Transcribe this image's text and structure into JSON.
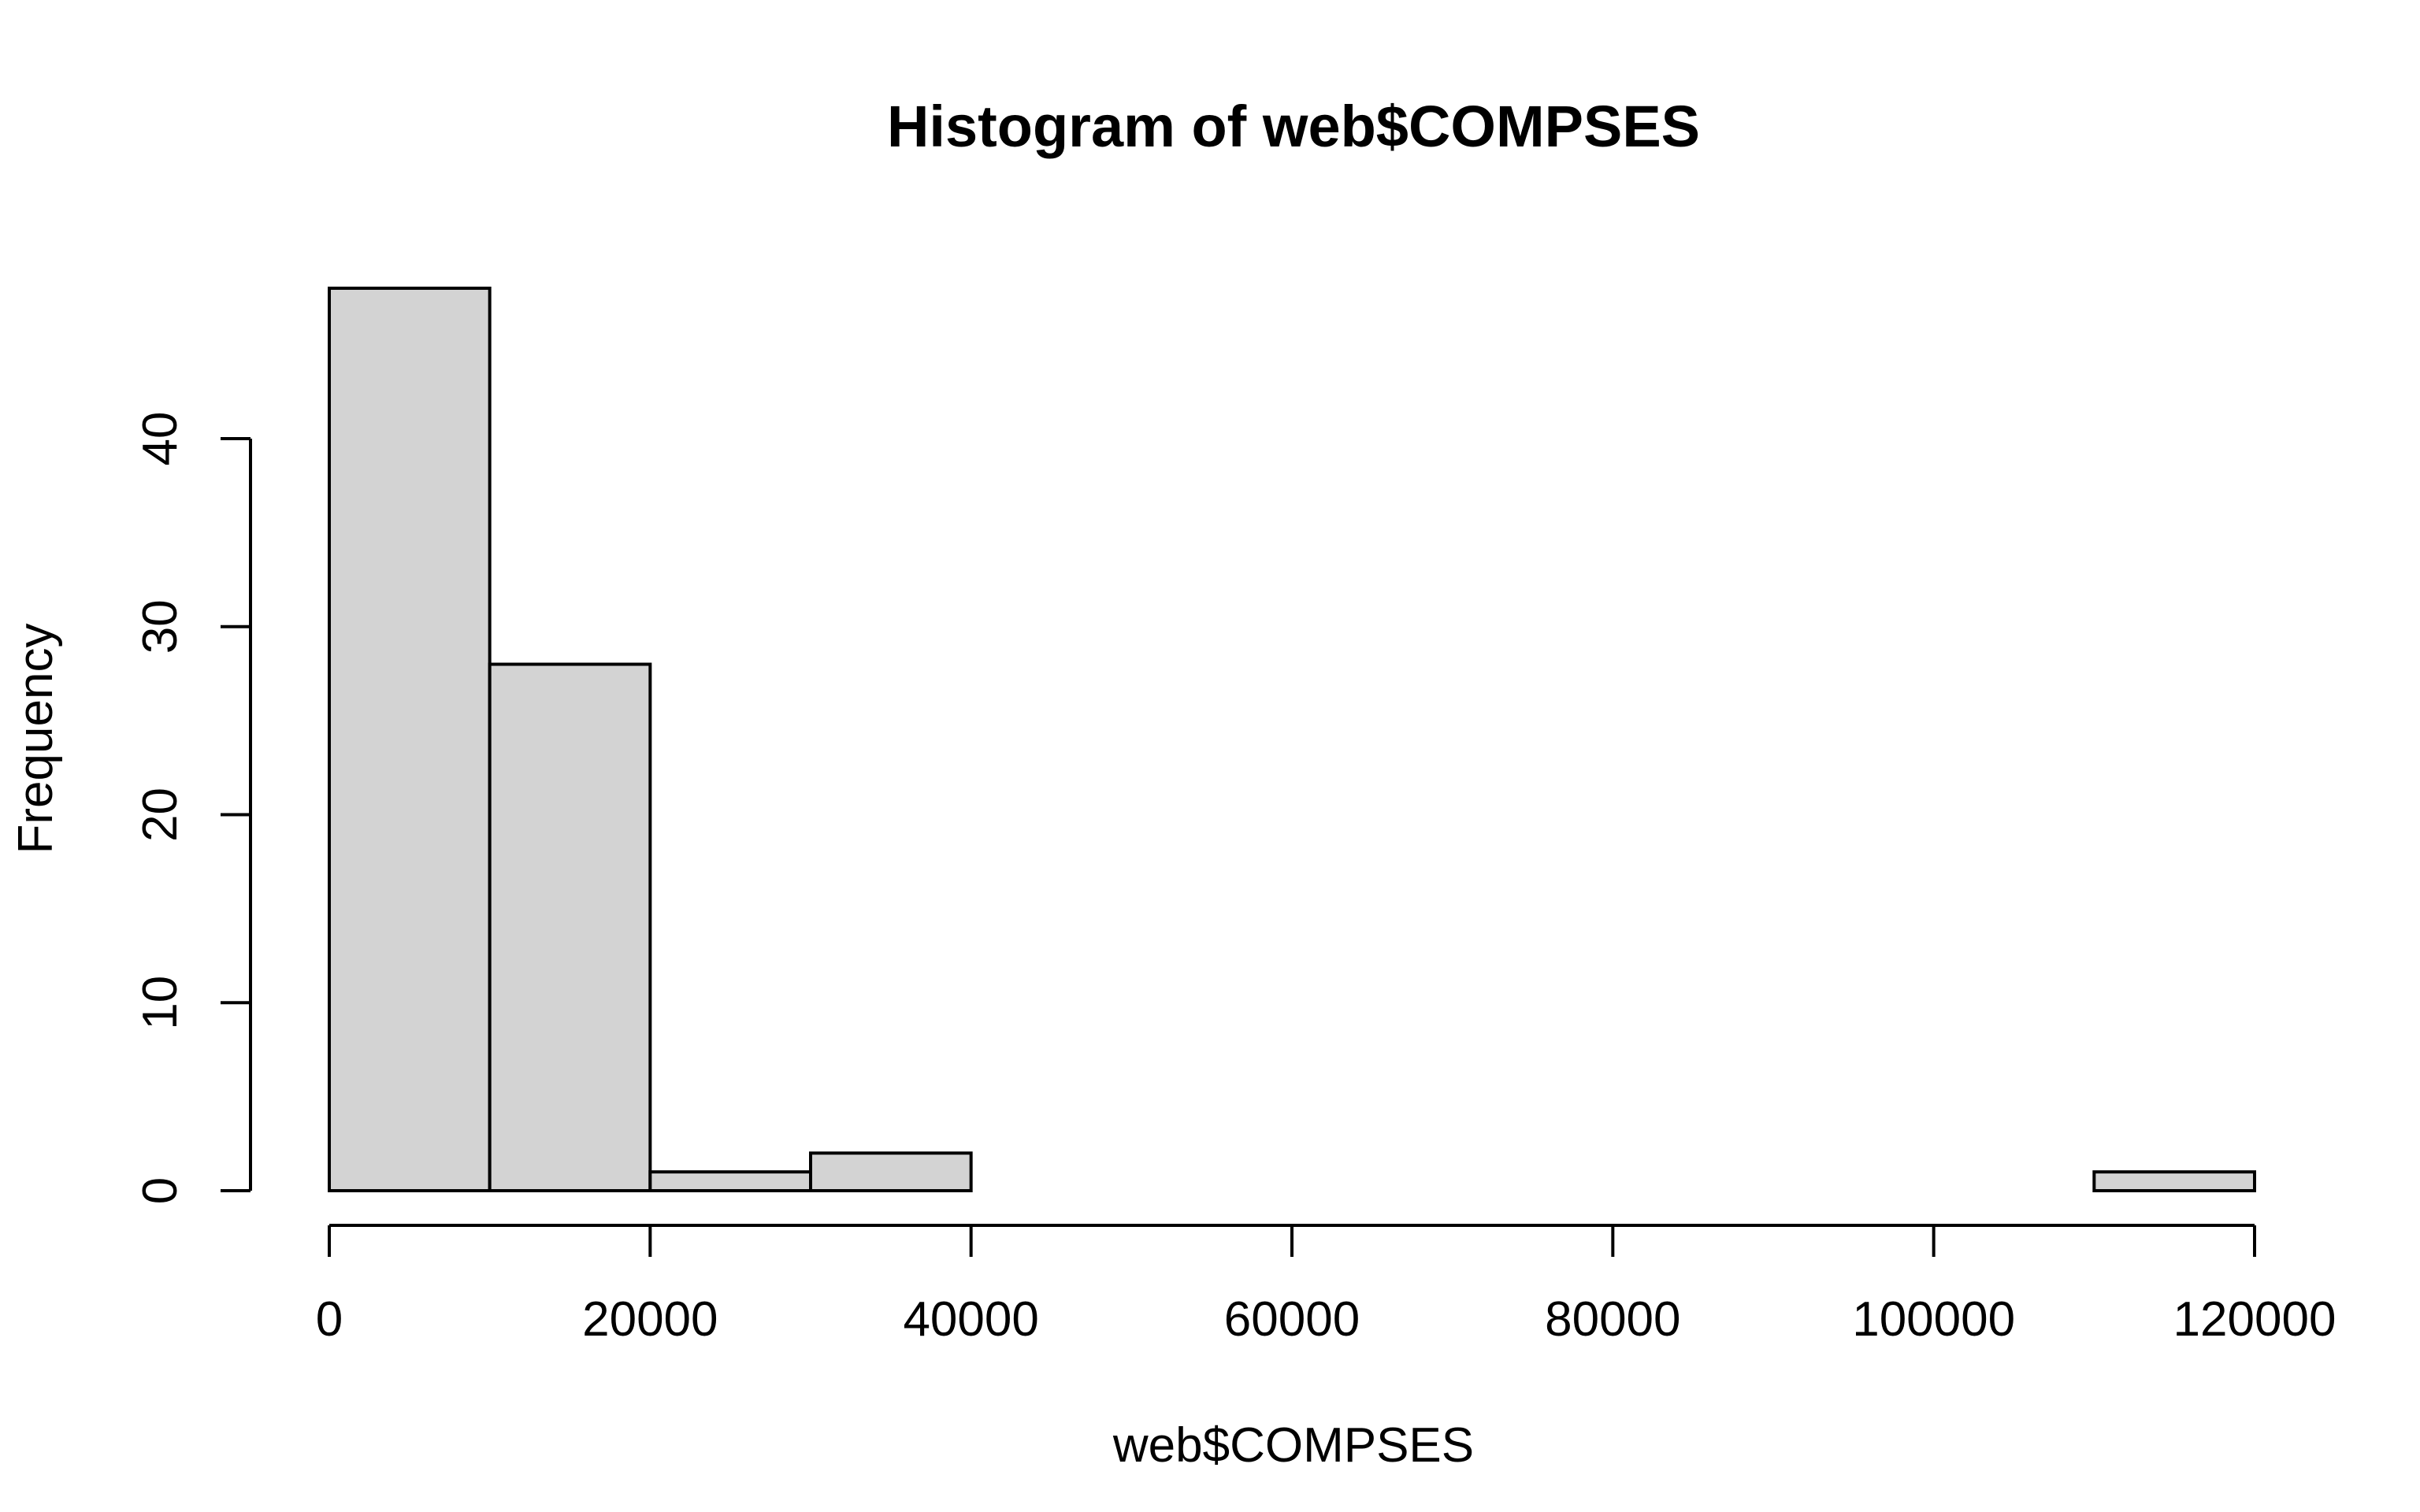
{
  "chart_data": {
    "type": "bar",
    "title": "Histogram of web$COMPSES",
    "xlabel": "web$COMPSES",
    "ylabel": "Frequency",
    "bin_edges": [
      0,
      10000,
      20000,
      30000,
      40000,
      50000,
      60000,
      70000,
      80000,
      90000,
      100000,
      110000,
      120000
    ],
    "values": [
      48,
      28,
      1,
      2,
      0,
      0,
      0,
      0,
      0,
      0,
      0,
      1
    ],
    "xlim": [
      0,
      120000
    ],
    "ylim": [
      0,
      48
    ],
    "x_ticks": [
      0,
      20000,
      40000,
      60000,
      80000,
      100000,
      120000
    ],
    "x_tick_labels": [
      "0",
      "20000",
      "40000",
      "60000",
      "80000",
      "100000",
      "120000"
    ],
    "y_ticks": [
      0,
      10,
      20,
      30,
      40
    ],
    "y_tick_labels": [
      "0",
      "10",
      "20",
      "30",
      "40"
    ],
    "grid": false,
    "bar_color": "#d3d3d3",
    "bar_edge_color": "#000000"
  }
}
